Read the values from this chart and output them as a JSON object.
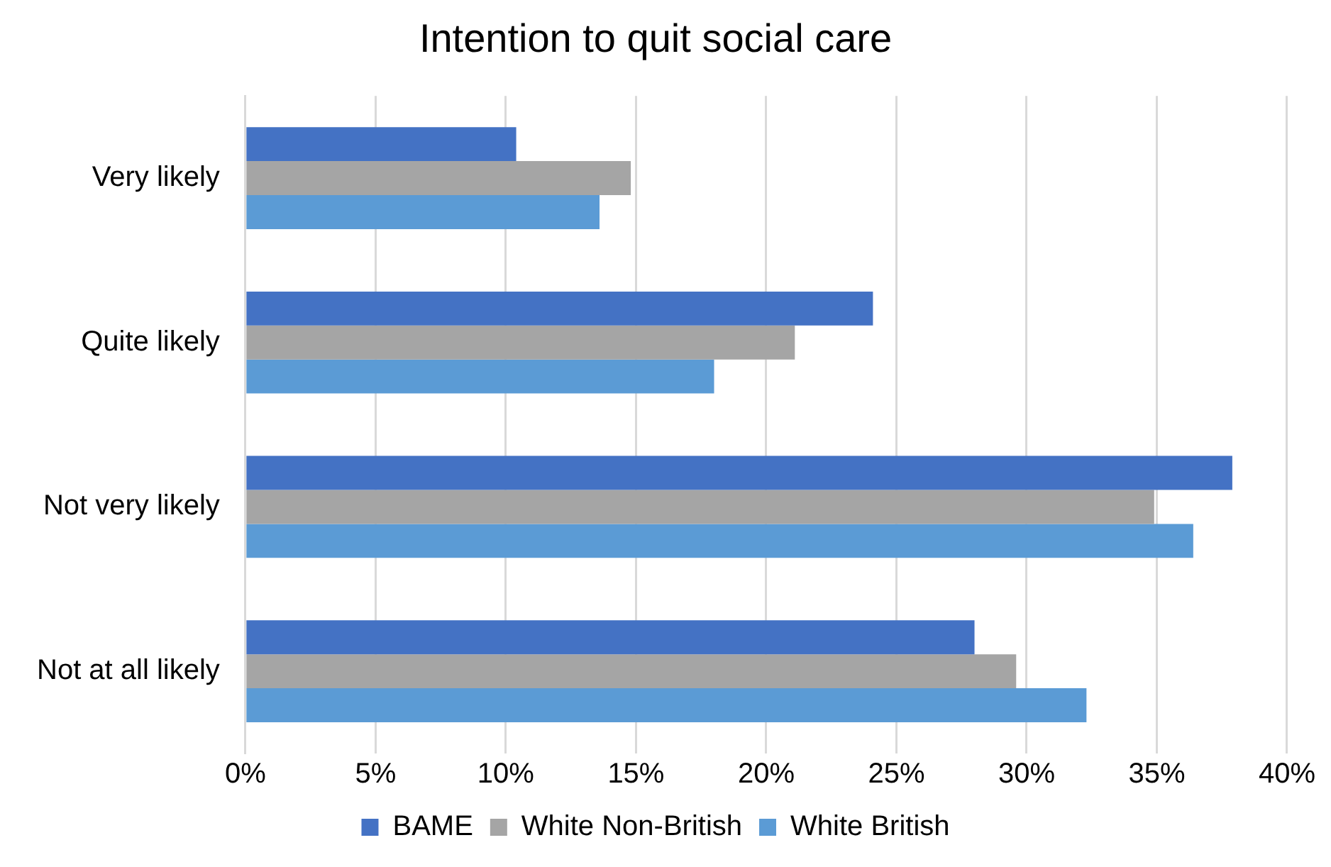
{
  "chart_data": {
    "type": "bar",
    "orientation": "horizontal",
    "title": "Intention to quit social care",
    "categories": [
      "Very likely",
      "Quite likely",
      "Not very likely",
      "Not at all likely"
    ],
    "series": [
      {
        "name": "BAME",
        "color": "#4472c4",
        "values": [
          10.4,
          24.1,
          37.9,
          28.0
        ]
      },
      {
        "name": "White Non-British",
        "color": "#a5a5a5",
        "values": [
          14.8,
          21.1,
          34.9,
          29.6
        ]
      },
      {
        "name": "White British",
        "color": "#5b9bd5",
        "values": [
          13.6,
          18.0,
          36.4,
          32.3
        ]
      }
    ],
    "xlim": [
      0,
      40
    ],
    "xticks": [
      {
        "value": 0,
        "label": "0%"
      },
      {
        "value": 5,
        "label": "5%"
      },
      {
        "value": 10,
        "label": "10%"
      },
      {
        "value": 15,
        "label": "15%"
      },
      {
        "value": 20,
        "label": "20%"
      },
      {
        "value": 25,
        "label": "25%"
      },
      {
        "value": 30,
        "label": "30%"
      },
      {
        "value": 35,
        "label": "35%"
      },
      {
        "value": 40,
        "label": "40%"
      }
    ],
    "grid": "x",
    "legend": "bottom"
  }
}
